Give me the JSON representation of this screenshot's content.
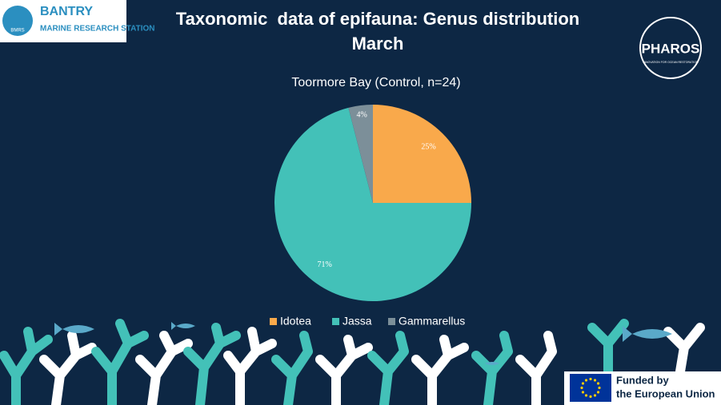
{
  "slide": {
    "title": "Taxonomic  data of epifauna: Genus distribution",
    "subtitle": "March"
  },
  "logos": {
    "bantry": [
      "BANTRY",
      "MARINE RESEARCH STATION",
      "BMRS"
    ],
    "pharos": [
      "PHAROS",
      "INNOVATION FOR OCEAN RESTORATION"
    ],
    "eu": [
      "Funded by",
      "the European Union"
    ]
  },
  "chart_data": {
    "type": "pie",
    "title": "Toormore Bay (Control, n=24)",
    "categories": [
      "Idotea",
      "Jassa",
      "Gammarellus"
    ],
    "values": [
      25,
      71,
      4
    ],
    "value_labels": [
      "25%",
      "71%",
      "4%"
    ],
    "colors": [
      "#f9a94b",
      "#43c1b8",
      "#7c8f99"
    ],
    "legend": "bottom"
  }
}
